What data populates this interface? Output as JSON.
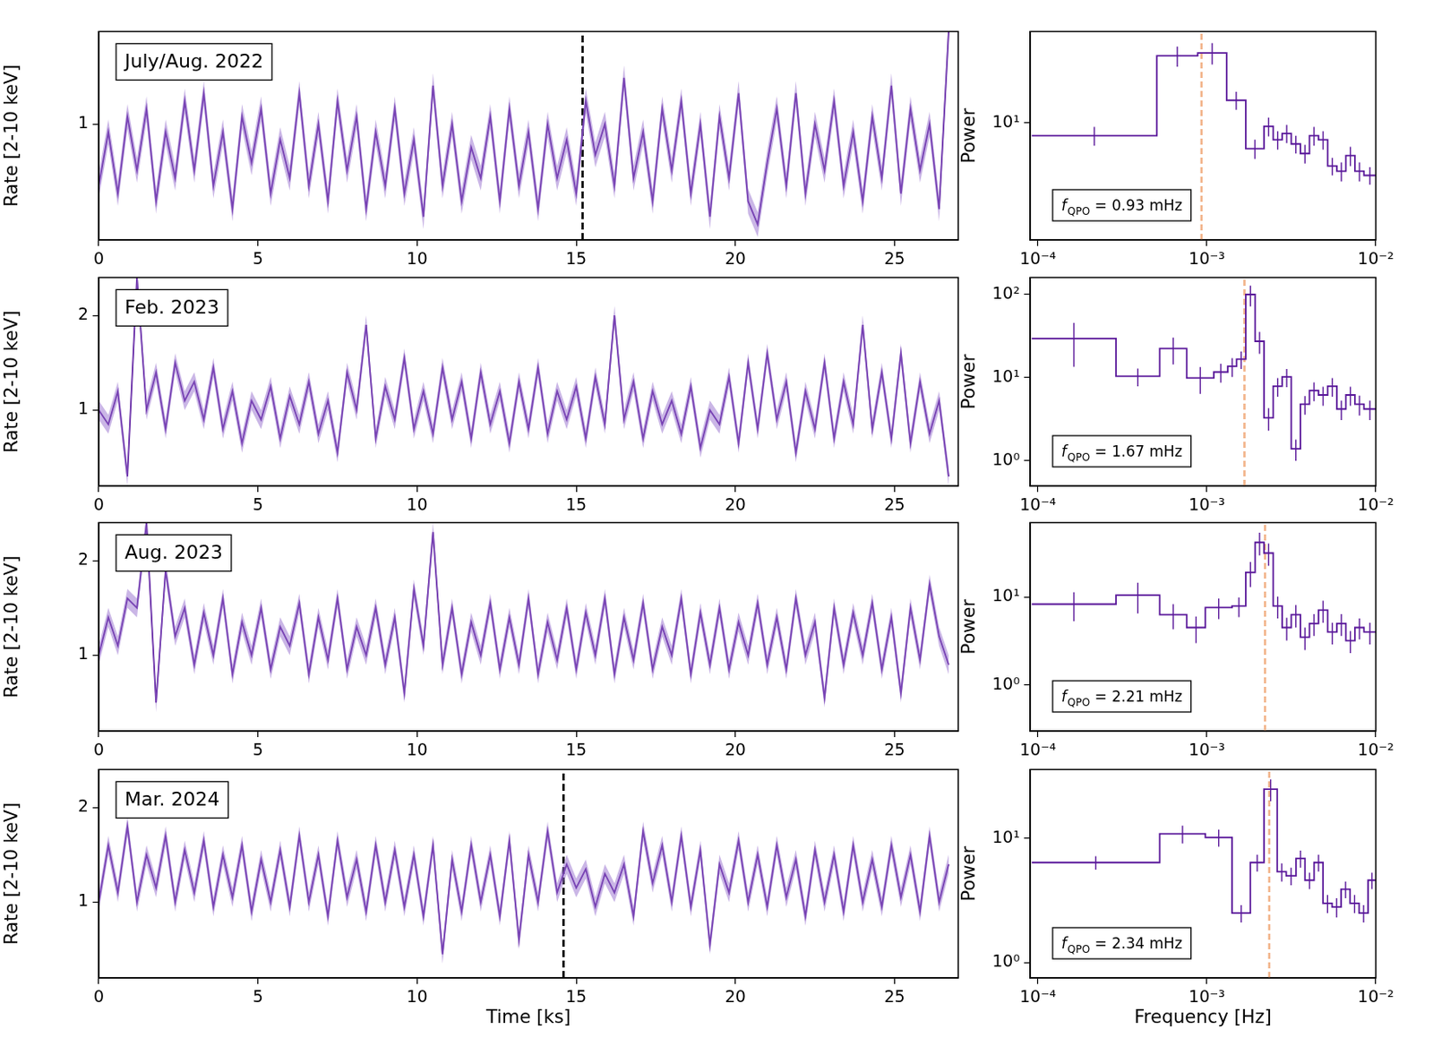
{
  "chart_data": [
    {
      "type": "line",
      "label": "July/Aug. 2022",
      "y_label": "Rate [2-10 keV]",
      "color": "#5a189a",
      "x": [
        0,
        0.3,
        0.6,
        0.9,
        1.2,
        1.5,
        1.8,
        2.1,
        2.4,
        2.7,
        3,
        3.3,
        3.6,
        3.9,
        4.2,
        4.5,
        4.8,
        5.1,
        5.4,
        5.7,
        6,
        6.3,
        6.6,
        6.9,
        7.2,
        7.5,
        7.8,
        8.1,
        8.4,
        8.7,
        9,
        9.3,
        9.6,
        9.9,
        10.2,
        10.5,
        10.8,
        11.1,
        11.4,
        11.7,
        12,
        12.3,
        12.6,
        12.9,
        13.2,
        13.5,
        13.8,
        14.1,
        14.4,
        14.7,
        15,
        15.3,
        15.6,
        15.9,
        16.2,
        16.5,
        16.8,
        17.1,
        17.4,
        17.7,
        18,
        18.3,
        18.6,
        18.9,
        19.2,
        19.5,
        19.8,
        20.1,
        20.4,
        20.7,
        21,
        21.3,
        21.6,
        21.9,
        22.2,
        22.5,
        22.8,
        23.1,
        23.4,
        23.7,
        24,
        24.3,
        24.6,
        24.9,
        25.2,
        25.5,
        25.8,
        26.1,
        26.4,
        26.7
      ],
      "values": [
        0.6,
        0.95,
        0.55,
        1.05,
        0.7,
        1.1,
        0.5,
        0.95,
        0.65,
        1.15,
        0.7,
        1.2,
        0.6,
        0.95,
        0.45,
        1.05,
        0.75,
        1.1,
        0.55,
        0.9,
        0.65,
        1.2,
        0.6,
        1.0,
        0.5,
        1.15,
        0.7,
        1.05,
        0.45,
        0.95,
        0.6,
        1.1,
        0.55,
        0.9,
        0.4,
        1.25,
        0.6,
        1.0,
        0.5,
        0.85,
        0.65,
        1.05,
        0.5,
        1.1,
        0.6,
        0.95,
        0.45,
        1.0,
        0.65,
        0.9,
        0.55,
        1.15,
        0.8,
        1.0,
        0.6,
        1.3,
        0.65,
        0.95,
        0.5,
        1.1,
        0.7,
        1.15,
        0.55,
        1.0,
        0.4,
        1.05,
        0.65,
        1.2,
        0.5,
        0.35,
        0.75,
        1.1,
        0.6,
        1.2,
        0.55,
        1.0,
        0.7,
        1.15,
        0.6,
        0.95,
        0.5,
        1.05,
        0.65,
        1.25,
        0.55,
        1.1,
        0.7,
        1.0,
        0.45,
        1.6
      ],
      "error": 0.08,
      "vline": 15.2,
      "xlim": [
        0,
        27
      ],
      "xticks": [
        0,
        5,
        10,
        15,
        20,
        25
      ],
      "ylim": [
        0.25,
        1.6
      ],
      "yticks": [
        1
      ]
    },
    {
      "type": "histogram",
      "log": true,
      "y_label": "Power",
      "color": "#5a189a",
      "annotation": "fQPO = 0.93 mHz",
      "qpo_frequency": 0.00093,
      "bins": [
        9.2e-05,
        0.000506,
        0.000883,
        0.00131,
        0.0017,
        0.00218,
        0.00247,
        0.00279,
        0.00316,
        0.00358,
        0.00405,
        0.00458,
        0.00519,
        0.00588,
        0.00665,
        0.00752,
        0.00851,
        0.01
      ],
      "values": [
        8.2,
        28.7,
        30,
        14.3,
        6.7,
        9.5,
        7.7,
        8.5,
        7.2,
        6.2,
        8.2,
        7.7,
        5.1,
        4.7,
        6.0,
        4.7,
        4.4
      ],
      "errors": [
        1.2,
        4.5,
        5,
        2,
        1,
        1.4,
        1.1,
        1.2,
        1.0,
        0.9,
        1.2,
        1.1,
        0.7,
        0.7,
        0.9,
        0.7,
        0.6
      ],
      "xlim": [
        9e-05,
        0.01
      ],
      "xticks": [
        {
          "value": 0.0001,
          "label": "10⁻⁴"
        },
        {
          "value": 0.001,
          "label": "10⁻³"
        },
        {
          "value": 0.01,
          "label": "10⁻²"
        }
      ],
      "ylim": [
        1.6,
        42
      ],
      "yticks": [
        {
          "value": 10,
          "label": "10¹"
        }
      ]
    },
    {
      "type": "line",
      "label": "Feb. 2023",
      "y_label": "Rate [2-10 keV]",
      "color": "#5a189a",
      "x": [
        0,
        0.3,
        0.6,
        0.9,
        1.2,
        1.5,
        1.8,
        2.1,
        2.4,
        2.7,
        3,
        3.3,
        3.6,
        3.9,
        4.2,
        4.5,
        4.8,
        5.1,
        5.4,
        5.7,
        6,
        6.3,
        6.6,
        6.9,
        7.2,
        7.5,
        7.8,
        8.1,
        8.4,
        8.7,
        9,
        9.3,
        9.6,
        9.9,
        10.2,
        10.5,
        10.8,
        11.1,
        11.4,
        11.7,
        12,
        12.3,
        12.6,
        12.9,
        13.2,
        13.5,
        13.8,
        14.1,
        14.4,
        14.7,
        15,
        15.3,
        15.6,
        15.9,
        16.2,
        16.5,
        16.8,
        17.1,
        17.4,
        17.7,
        18,
        18.3,
        18.6,
        18.9,
        19.2,
        19.5,
        19.8,
        20.1,
        20.4,
        20.7,
        21,
        21.3,
        21.6,
        21.9,
        22.2,
        22.5,
        22.8,
        23.1,
        23.4,
        23.7,
        24,
        24.3,
        24.6,
        24.9,
        25.2,
        25.5,
        25.8,
        26.1,
        26.4,
        26.7
      ],
      "values": [
        1.0,
        0.85,
        1.2,
        0.3,
        2.4,
        1.0,
        1.4,
        0.8,
        1.5,
        1.1,
        1.3,
        0.9,
        1.45,
        0.8,
        1.2,
        0.65,
        1.1,
        0.9,
        1.25,
        0.7,
        1.15,
        0.85,
        1.3,
        0.75,
        1.1,
        0.55,
        1.4,
        1.0,
        1.9,
        0.7,
        1.25,
        0.9,
        1.55,
        0.8,
        1.2,
        0.75,
        1.45,
        0.9,
        1.3,
        0.7,
        1.4,
        0.85,
        1.2,
        0.65,
        1.3,
        0.8,
        1.45,
        0.75,
        1.2,
        0.9,
        1.25,
        0.7,
        1.35,
        0.85,
        2.0,
        0.9,
        1.3,
        0.7,
        1.2,
        0.85,
        1.1,
        0.75,
        1.25,
        0.6,
        1.0,
        0.85,
        1.35,
        0.65,
        1.5,
        0.8,
        1.6,
        0.9,
        1.3,
        0.55,
        1.2,
        0.8,
        1.5,
        0.7,
        1.3,
        0.85,
        1.9,
        0.8,
        1.4,
        0.7,
        1.6,
        0.65,
        1.3,
        0.75,
        1.1,
        0.3
      ],
      "error": 0.1,
      "xlim": [
        0,
        27
      ],
      "xticks": [
        0,
        5,
        10,
        15,
        20,
        25
      ],
      "ylim": [
        0.2,
        2.4
      ],
      "yticks": [
        1,
        2
      ]
    },
    {
      "type": "histogram",
      "log": true,
      "y_label": "Power",
      "color": "#5a189a",
      "annotation": "fQPO = 1.67 mHz",
      "qpo_frequency": 0.00167,
      "bins": [
        9.2e-05,
        0.00029,
        0.000526,
        0.00076,
        0.0011,
        0.00133,
        0.0015,
        0.0017,
        0.00193,
        0.00218,
        0.00247,
        0.00279,
        0.00316,
        0.00358,
        0.00405,
        0.00458,
        0.00519,
        0.00588,
        0.00665,
        0.00752,
        0.00851,
        0.01
      ],
      "values": [
        29.5,
        10.4,
        22.4,
        9.9,
        11.7,
        13.7,
        16.7,
        100,
        27.4,
        3.3,
        7.9,
        10.2,
        1.4,
        4.8,
        7.0,
        6.2,
        7.9,
        4.2,
        6.2,
        4.8,
        4.2
      ],
      "errors": [
        16,
        2.5,
        8,
        3.5,
        3,
        3.5,
        4,
        28,
        8,
        1,
        2,
        2.5,
        0.4,
        1.2,
        1.8,
        1.6,
        2,
        1.1,
        1.6,
        1.3,
        1.1
      ],
      "xlim": [
        9e-05,
        0.01
      ],
      "xticks": [
        {
          "value": 0.0001,
          "label": "10⁻⁴"
        },
        {
          "value": 0.001,
          "label": "10⁻³"
        },
        {
          "value": 0.01,
          "label": "10⁻²"
        }
      ],
      "ylim": [
        0.5,
        160
      ],
      "yticks": [
        {
          "value": 1,
          "label": "10⁰"
        },
        {
          "value": 10,
          "label": "10¹"
        },
        {
          "value": 100,
          "label": "10²"
        }
      ]
    },
    {
      "type": "line",
      "label": "Aug. 2023",
      "y_label": "Rate [2-10 keV]",
      "color": "#5a189a",
      "x": [
        0,
        0.3,
        0.6,
        0.9,
        1.2,
        1.5,
        1.8,
        2.1,
        2.4,
        2.7,
        3,
        3.3,
        3.6,
        3.9,
        4.2,
        4.5,
        4.8,
        5.1,
        5.4,
        5.7,
        6,
        6.3,
        6.6,
        6.9,
        7.2,
        7.5,
        7.8,
        8.1,
        8.4,
        8.7,
        9,
        9.3,
        9.6,
        9.9,
        10.2,
        10.5,
        10.8,
        11.1,
        11.4,
        11.7,
        12,
        12.3,
        12.6,
        12.9,
        13.2,
        13.5,
        13.8,
        14.1,
        14.4,
        14.7,
        15,
        15.3,
        15.6,
        15.9,
        16.2,
        16.5,
        16.8,
        17.1,
        17.4,
        17.7,
        18,
        18.3,
        18.6,
        18.9,
        19.2,
        19.5,
        19.8,
        20.1,
        20.4,
        20.7,
        21,
        21.3,
        21.6,
        21.9,
        22.2,
        22.5,
        22.8,
        23.1,
        23.4,
        23.7,
        24,
        24.3,
        24.6,
        24.9,
        25.2,
        25.5,
        25.8,
        26.1,
        26.4,
        26.7
      ],
      "values": [
        1.0,
        1.4,
        1.1,
        1.6,
        1.5,
        2.4,
        0.5,
        1.9,
        1.2,
        1.5,
        0.9,
        1.45,
        1.0,
        1.6,
        0.8,
        1.35,
        1.0,
        1.5,
        0.85,
        1.3,
        1.1,
        1.55,
        0.8,
        1.4,
        0.95,
        1.6,
        0.85,
        1.3,
        1.0,
        1.5,
        0.9,
        1.4,
        0.6,
        1.7,
        1.1,
        2.3,
        0.9,
        1.5,
        0.8,
        1.35,
        1.0,
        1.55,
        0.85,
        1.4,
        0.9,
        1.6,
        0.8,
        1.35,
        0.95,
        1.5,
        0.85,
        1.45,
        1.0,
        1.6,
        0.8,
        1.4,
        0.95,
        1.55,
        0.85,
        1.3,
        1.0,
        1.6,
        0.8,
        1.45,
        0.9,
        1.5,
        0.85,
        1.35,
        1.0,
        1.55,
        0.9,
        1.4,
        0.85,
        1.6,
        1.0,
        1.35,
        0.55,
        1.5,
        0.9,
        1.45,
        1.0,
        1.55,
        0.85,
        1.4,
        0.6,
        1.5,
        0.95,
        1.75,
        1.2,
        0.9
      ],
      "error": 0.1,
      "xlim": [
        0,
        27
      ],
      "xticks": [
        0,
        5,
        10,
        15,
        20,
        25
      ],
      "ylim": [
        0.2,
        2.4
      ],
      "yticks": [
        1,
        2
      ]
    },
    {
      "type": "histogram",
      "log": true,
      "y_label": "Power",
      "color": "#5a189a",
      "annotation": "fQPO = 2.21 mHz",
      "qpo_frequency": 0.00221,
      "bins": [
        9.2e-05,
        0.00029,
        0.000526,
        0.00076,
        0.00098,
        0.00141,
        0.0017,
        0.00193,
        0.00218,
        0.00247,
        0.00279,
        0.00316,
        0.00358,
        0.00405,
        0.00458,
        0.00519,
        0.00588,
        0.00665,
        0.00752,
        0.00851,
        0.01
      ],
      "values": [
        8.3,
        10.5,
        6.3,
        4.5,
        7.6,
        7.9,
        19,
        41.7,
        31.6,
        7.9,
        4.5,
        6.3,
        3.5,
        5.0,
        7.1,
        4.0,
        5.0,
        3.2,
        4.5,
        4.0
      ],
      "errors": [
        3,
        4,
        2,
        1.5,
        2,
        2,
        6,
        12,
        9,
        2.2,
        1.3,
        1.8,
        1,
        1.4,
        2,
        1.1,
        1.4,
        0.9,
        1.2,
        1.1
      ],
      "xlim": [
        9e-05,
        0.01
      ],
      "xticks": [
        {
          "value": 0.0001,
          "label": "10⁻⁴"
        },
        {
          "value": 0.001,
          "label": "10⁻³"
        },
        {
          "value": 0.01,
          "label": "10⁻²"
        }
      ],
      "ylim": [
        0.3,
        70
      ],
      "yticks": [
        {
          "value": 1,
          "label": "10⁰"
        },
        {
          "value": 10,
          "label": "10¹"
        }
      ]
    },
    {
      "type": "line",
      "label": "Mar. 2024",
      "y_label": "Rate [2-10 keV]",
      "x_label": "Time [ks]",
      "color": "#5a189a",
      "x": [
        0,
        0.3,
        0.6,
        0.9,
        1.2,
        1.5,
        1.8,
        2.1,
        2.4,
        2.7,
        3,
        3.3,
        3.6,
        3.9,
        4.2,
        4.5,
        4.8,
        5.1,
        5.4,
        5.7,
        6,
        6.3,
        6.6,
        6.9,
        7.2,
        7.5,
        7.8,
        8.1,
        8.4,
        8.7,
        9,
        9.3,
        9.6,
        9.9,
        10.2,
        10.5,
        10.8,
        11.1,
        11.4,
        11.7,
        12,
        12.3,
        12.6,
        12.9,
        13.2,
        13.5,
        13.8,
        14.1,
        14.4,
        14.7,
        15,
        15.3,
        15.6,
        15.9,
        16.2,
        16.5,
        16.8,
        17.1,
        17.4,
        17.7,
        18,
        18.3,
        18.6,
        18.9,
        19.2,
        19.5,
        19.8,
        20.1,
        20.4,
        20.7,
        21,
        21.3,
        21.6,
        21.9,
        22.2,
        22.5,
        22.8,
        23.1,
        23.4,
        23.7,
        24,
        24.3,
        24.6,
        24.9,
        25.2,
        25.5,
        25.8,
        26.1,
        26.4,
        26.7
      ],
      "values": [
        1.0,
        1.6,
        1.1,
        1.8,
        1.0,
        1.5,
        1.15,
        1.7,
        1.0,
        1.55,
        1.1,
        1.65,
        0.95,
        1.5,
        1.05,
        1.6,
        0.9,
        1.45,
        1.0,
        1.55,
        0.95,
        1.7,
        1.0,
        1.5,
        0.85,
        1.65,
        1.05,
        1.45,
        0.9,
        1.6,
        1.0,
        1.55,
        0.95,
        1.5,
        0.85,
        1.6,
        0.45,
        1.45,
        0.9,
        1.6,
        1.0,
        1.5,
        0.85,
        1.65,
        0.6,
        1.5,
        1.0,
        1.75,
        1.1,
        1.4,
        1.15,
        1.35,
        0.95,
        1.3,
        1.1,
        1.4,
        0.85,
        1.75,
        1.2,
        1.6,
        1.0,
        1.7,
        0.95,
        1.55,
        0.55,
        1.4,
        1.1,
        1.65,
        1.0,
        1.5,
        0.95,
        1.6,
        1.05,
        1.45,
        0.85,
        1.55,
        1.0,
        1.5,
        0.9,
        1.6,
        1.0,
        1.45,
        0.95,
        1.6,
        1.05,
        1.5,
        0.9,
        1.7,
        1.0,
        1.4
      ],
      "error": 0.1,
      "vline": 14.6,
      "xlim": [
        0,
        27
      ],
      "xticks": [
        0,
        5,
        10,
        15,
        20,
        25
      ],
      "ylim": [
        0.2,
        2.4
      ],
      "yticks": [
        1,
        2
      ]
    },
    {
      "type": "histogram",
      "log": true,
      "y_label": "Power",
      "x_label": "Frequency [Hz]",
      "color": "#5a189a",
      "annotation": "fQPO = 2.34 mHz",
      "qpo_frequency": 0.00234,
      "bins": [
        9.2e-05,
        0.000526,
        0.00098,
        0.00141,
        0.00181,
        0.00218,
        0.00261,
        0.00295,
        0.00337,
        0.00381,
        0.00431,
        0.00487,
        0.00551,
        0.00623,
        0.00704,
        0.00796,
        0.009,
        0.01
      ],
      "values": [
        6.4,
        10.9,
        10.2,
        2.5,
        6.4,
        25,
        5.4,
        5.0,
        6.9,
        4.6,
        6.4,
        3.0,
        2.8,
        3.9,
        3.0,
        2.5,
        4.6
      ],
      "errors": [
        0.8,
        1.8,
        1.6,
        0.4,
        1.0,
        5,
        0.9,
        0.8,
        1.1,
        0.7,
        1.0,
        0.5,
        0.5,
        0.6,
        0.5,
        0.4,
        0.7
      ],
      "xlim": [
        9e-05,
        0.01
      ],
      "xticks": [
        {
          "value": 0.0001,
          "label": "10⁻⁴"
        },
        {
          "value": 0.001,
          "label": "10⁻³"
        },
        {
          "value": 0.01,
          "label": "10⁻²"
        }
      ],
      "ylim": [
        0.75,
        36
      ],
      "yticks": [
        {
          "value": 1,
          "label": "10⁰"
        },
        {
          "value": 10,
          "label": "10¹"
        }
      ]
    }
  ]
}
